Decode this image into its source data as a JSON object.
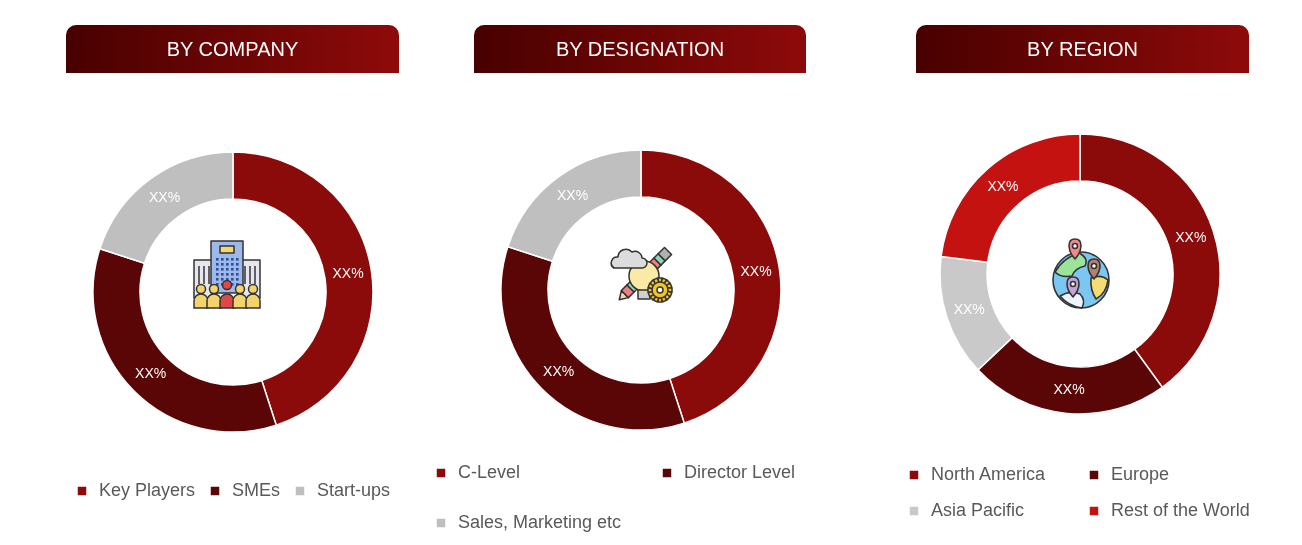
{
  "chart_data": [
    {
      "type": "donut",
      "title": "BY COMPANY",
      "categories": [
        "Key Players",
        "SMEs",
        "Start-ups"
      ],
      "values": [
        45,
        35,
        20
      ],
      "colors": [
        "#8b0a0a",
        "#5a0606",
        "#bfbfbf"
      ],
      "value_labels": [
        "XX%",
        "XX%",
        "XX%"
      ],
      "legend": "bottom"
    },
    {
      "type": "donut",
      "title": "BY DESIGNATION",
      "categories": [
        "C-Level",
        "Director Level",
        "Sales, Marketing etc"
      ],
      "values": [
        45,
        35,
        20
      ],
      "colors": [
        "#8b0a0a",
        "#5a0606",
        "#bfbfbf"
      ],
      "value_labels": [
        "XX%",
        "XX%",
        "XX%"
      ],
      "legend": "bottom"
    },
    {
      "type": "donut",
      "title": "BY REGION",
      "categories": [
        "North America",
        "Europe",
        "Asia Pacific",
        "Rest of the World"
      ],
      "values": [
        40,
        23,
        14,
        23
      ],
      "colors": [
        "#8b0a0a",
        "#5a0606",
        "#c9c9c9",
        "#c3120f"
      ],
      "value_labels": [
        "XX%",
        "XX%",
        "XX%",
        "XX%"
      ],
      "legend": "bottom"
    }
  ]
}
